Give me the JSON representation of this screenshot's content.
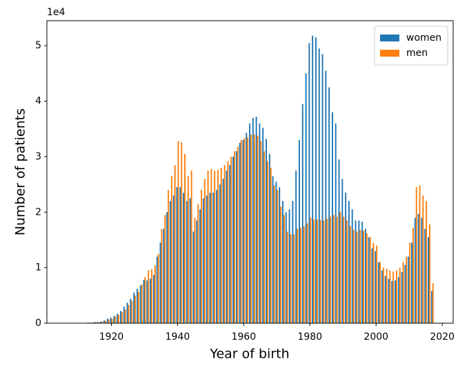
{
  "chart_data": {
    "type": "bar",
    "x_label": "Year of birth",
    "y_label": "Number of patients",
    "y_offset_label": "1e4",
    "x": [
      1913,
      1914,
      1915,
      1916,
      1917,
      1918,
      1919,
      1920,
      1921,
      1922,
      1923,
      1924,
      1925,
      1926,
      1927,
      1928,
      1929,
      1930,
      1931,
      1932,
      1933,
      1934,
      1935,
      1936,
      1937,
      1938,
      1939,
      1940,
      1941,
      1942,
      1943,
      1944,
      1945,
      1946,
      1947,
      1948,
      1949,
      1950,
      1951,
      1952,
      1953,
      1954,
      1955,
      1956,
      1957,
      1958,
      1959,
      1960,
      1961,
      1962,
      1963,
      1964,
      1965,
      1966,
      1967,
      1968,
      1969,
      1970,
      1971,
      1972,
      1973,
      1974,
      1975,
      1976,
      1977,
      1978,
      1979,
      1980,
      1981,
      1982,
      1983,
      1984,
      1985,
      1986,
      1987,
      1988,
      1989,
      1990,
      1991,
      1992,
      1993,
      1994,
      1995,
      1996,
      1997,
      1998,
      1999,
      2000,
      2001,
      2002,
      2003,
      2004,
      2005,
      2006,
      2007,
      2008,
      2009,
      2010,
      2011,
      2012,
      2013,
      2014,
      2015,
      2016,
      2017
    ],
    "series": [
      {
        "name": "women",
        "color": "#1f77b4",
        "values": [
          0.01,
          0.01,
          0.02,
          0.02,
          0.03,
          0.05,
          0.08,
          0.1,
          0.13,
          0.17,
          0.22,
          0.3,
          0.37,
          0.44,
          0.55,
          0.62,
          0.68,
          0.78,
          0.77,
          0.8,
          0.87,
          1.2,
          1.45,
          1.7,
          2.0,
          2.2,
          2.3,
          2.45,
          2.45,
          2.35,
          2.2,
          2.25,
          1.65,
          1.85,
          2.05,
          2.25,
          2.3,
          2.35,
          2.35,
          2.4,
          2.5,
          2.6,
          2.75,
          2.85,
          3.0,
          3.1,
          3.25,
          3.3,
          3.43,
          3.6,
          3.7,
          3.72,
          3.6,
          3.52,
          3.32,
          3.05,
          2.65,
          2.55,
          2.45,
          2.2,
          2.0,
          2.05,
          2.2,
          2.75,
          3.3,
          3.95,
          4.5,
          5.05,
          5.18,
          5.15,
          4.95,
          4.85,
          4.55,
          4.25,
          3.8,
          3.6,
          2.95,
          2.6,
          2.35,
          2.2,
          2.05,
          1.85,
          1.85,
          1.83,
          1.7,
          1.55,
          1.35,
          1.3,
          1.1,
          0.95,
          0.85,
          0.8,
          0.76,
          0.77,
          0.83,
          0.92,
          1.05,
          1.2,
          1.45,
          1.9,
          1.97,
          1.9,
          1.7,
          1.55,
          0.58
        ]
      },
      {
        "name": "men",
        "color": "#ff7f0e",
        "values": [
          0.01,
          0.01,
          0.02,
          0.02,
          0.03,
          0.04,
          0.07,
          0.08,
          0.12,
          0.15,
          0.2,
          0.25,
          0.33,
          0.4,
          0.5,
          0.57,
          0.7,
          0.83,
          0.95,
          0.97,
          1.04,
          1.25,
          1.7,
          1.95,
          2.4,
          2.65,
          2.85,
          3.28,
          3.26,
          3.05,
          2.65,
          2.75,
          1.9,
          2.15,
          2.4,
          2.6,
          2.75,
          2.78,
          2.75,
          2.76,
          2.8,
          2.85,
          2.92,
          3.0,
          3.1,
          3.18,
          3.3,
          3.33,
          3.35,
          3.4,
          3.4,
          3.38,
          3.28,
          3.1,
          2.92,
          2.8,
          2.48,
          2.4,
          2.1,
          1.95,
          1.65,
          1.6,
          1.6,
          1.7,
          1.72,
          1.75,
          1.8,
          1.9,
          1.87,
          1.87,
          1.86,
          1.85,
          1.88,
          1.92,
          1.95,
          1.92,
          2.0,
          1.92,
          1.85,
          1.75,
          1.68,
          1.65,
          1.68,
          1.67,
          1.62,
          1.55,
          1.45,
          1.4,
          1.1,
          1.0,
          0.98,
          0.95,
          0.93,
          0.95,
          1.0,
          1.1,
          1.2,
          1.45,
          1.72,
          2.45,
          2.48,
          2.3,
          2.2,
          1.78,
          0.72
        ]
      }
    ],
    "xlim": [
      1900.5,
      2023.3
    ],
    "xticks": [
      1920,
      1940,
      1960,
      1980,
      2000,
      2020
    ],
    "ylim": [
      0,
      5.45
    ],
    "yticks": [
      0,
      1,
      2,
      3,
      4,
      5
    ],
    "legend": "upper right"
  }
}
